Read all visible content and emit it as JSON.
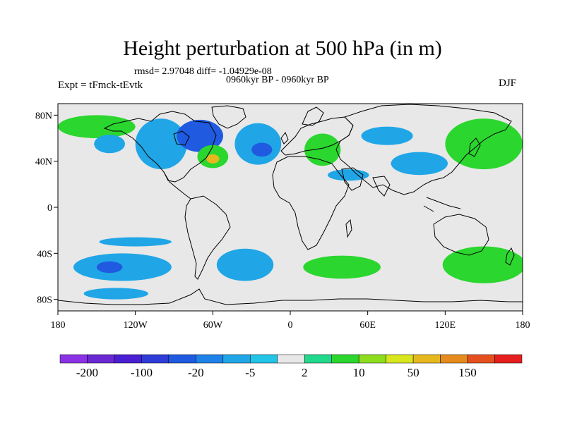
{
  "title": "Height perturbation at 500 hPa (in m)",
  "stats": "rmsd= 2.97048 diff= -1.04929e-08",
  "period": "0960kyr BP - 0960kyr BP",
  "experiment": "Expt = tFmck-tEvtk",
  "season": "DJF",
  "axes": {
    "x_ticks": [
      {
        "label": "180",
        "lon": -180
      },
      {
        "label": "120W",
        "lon": -120
      },
      {
        "label": "60W",
        "lon": -60
      },
      {
        "label": "0",
        "lon": 0
      },
      {
        "label": "60E",
        "lon": 60
      },
      {
        "label": "120E",
        "lon": 120
      },
      {
        "label": "180",
        "lon": 180
      }
    ],
    "y_ticks": [
      {
        "label": "80N",
        "lat": 80
      },
      {
        "label": "40N",
        "lat": 40
      },
      {
        "label": "0",
        "lat": 0
      },
      {
        "label": "40S",
        "lat": -40
      },
      {
        "label": "80S",
        "lat": -80
      }
    ]
  },
  "colorbar": {
    "colors": [
      "#8c32e6",
      "#6a28d2",
      "#4a1ed2",
      "#2f3cd8",
      "#1f5ae0",
      "#1e82e8",
      "#20a6e6",
      "#22c4e8",
      "#e8e8e8",
      "#21d98c",
      "#2bd62e",
      "#8edc1e",
      "#d8e61e",
      "#e6b81e",
      "#e68c1e",
      "#e6501e",
      "#e61e1e"
    ],
    "labels": [
      "-200",
      "-100",
      "-20",
      "-5",
      "2",
      "10",
      "50",
      "150"
    ],
    "label_after_box": [
      1,
      3,
      5,
      7,
      9,
      11,
      13,
      15
    ]
  },
  "anomalies": [
    {
      "name": "north-pacific-high-latitude",
      "lon": -150,
      "lat": 70,
      "rlon": 30,
      "rlat": 10,
      "level": 10
    },
    {
      "name": "gulf-of-alaska",
      "lon": -140,
      "lat": 55,
      "rlon": 12,
      "rlat": 8,
      "level": -5
    },
    {
      "name": "north-america-low",
      "lon": -100,
      "lat": 55,
      "rlon": 20,
      "rlat": 22,
      "level": -5
    },
    {
      "name": "canada-east-low",
      "lon": -70,
      "lat": 62,
      "rlon": 18,
      "rlat": 14,
      "level": -20
    },
    {
      "name": "northeast-us-high",
      "lon": -60,
      "lat": 44,
      "rlon": 12,
      "rlat": 10,
      "level": 10
    },
    {
      "name": "northeast-us-high-core",
      "lon": -60,
      "lat": 42,
      "rlon": 5,
      "rlat": 4,
      "level": 50
    },
    {
      "name": "north-atlantic-low",
      "lon": -25,
      "lat": 55,
      "rlon": 18,
      "rlat": 18,
      "level": -5
    },
    {
      "name": "north-atlantic-low-core",
      "lon": -22,
      "lat": 50,
      "rlon": 8,
      "rlat": 6,
      "level": -20
    },
    {
      "name": "europe-high",
      "lon": 25,
      "lat": 50,
      "rlon": 14,
      "rlat": 14,
      "level": 10
    },
    {
      "name": "siberia-low",
      "lon": 75,
      "lat": 62,
      "rlon": 20,
      "rlat": 8,
      "level": -5
    },
    {
      "name": "asia-low",
      "lon": 100,
      "lat": 38,
      "rlon": 22,
      "rlat": 10,
      "level": -5
    },
    {
      "name": "east-asia-high",
      "lon": 150,
      "lat": 55,
      "rlon": 30,
      "rlat": 22,
      "level": 10
    },
    {
      "name": "middle-east-low",
      "lon": 45,
      "lat": 28,
      "rlon": 16,
      "rlat": 5,
      "level": -5
    },
    {
      "name": "south-pacific-low",
      "lon": -130,
      "lat": -52,
      "rlon": 38,
      "rlat": 12,
      "level": -5
    },
    {
      "name": "south-pacific-low-core",
      "lon": -140,
      "lat": -52,
      "rlon": 10,
      "rlat": 5,
      "level": -20
    },
    {
      "name": "south-atlantic-low",
      "lon": -35,
      "lat": -50,
      "rlon": 22,
      "rlat": 14,
      "level": -5
    },
    {
      "name": "south-indian-high",
      "lon": 40,
      "lat": -52,
      "rlon": 30,
      "rlat": 10,
      "level": 10
    },
    {
      "name": "south-west-pacific-high",
      "lon": 150,
      "lat": -50,
      "rlon": 32,
      "rlat": 16,
      "level": 10
    },
    {
      "name": "subtropical-low-south",
      "lon": -120,
      "lat": -30,
      "rlon": 28,
      "rlat": 4,
      "level": -5
    },
    {
      "name": "antarctic-low",
      "lon": -135,
      "lat": -75,
      "rlon": 25,
      "rlat": 5,
      "level": -5
    }
  ]
}
